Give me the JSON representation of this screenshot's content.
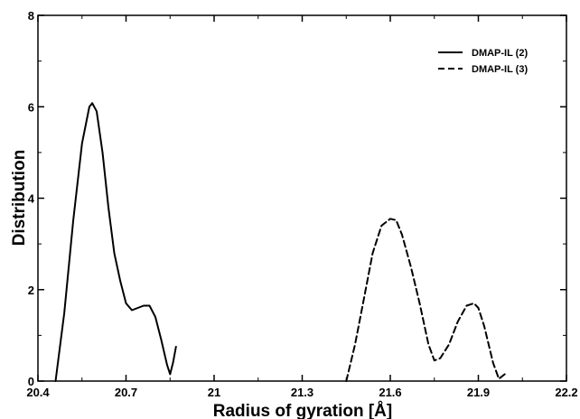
{
  "chart_data": {
    "type": "line",
    "title": "",
    "xlabel": "Radius of gyration [Å]",
    "ylabel": "Distribution",
    "xlim": [
      20.4,
      22.2
    ],
    "ylim": [
      0,
      8
    ],
    "x_ticks": [
      "20.4",
      "20.7",
      "21",
      "21.3",
      "21.6",
      "21.9",
      "22.2"
    ],
    "y_ticks": [
      "0",
      "2",
      "4",
      "6",
      "8"
    ],
    "grid": false,
    "legend_position": "top-right",
    "series": [
      {
        "name": "DMAP-IL (2)",
        "line_style": "solid",
        "color": "#000000",
        "points": [
          [
            20.46,
            0.0
          ],
          [
            20.49,
            1.5
          ],
          [
            20.52,
            3.5
          ],
          [
            20.55,
            5.2
          ],
          [
            20.575,
            6.0
          ],
          [
            20.585,
            6.08
          ],
          [
            20.6,
            5.9
          ],
          [
            20.62,
            5.0
          ],
          [
            20.64,
            3.8
          ],
          [
            20.66,
            2.8
          ],
          [
            20.68,
            2.2
          ],
          [
            20.7,
            1.7
          ],
          [
            20.72,
            1.55
          ],
          [
            20.74,
            1.6
          ],
          [
            20.76,
            1.65
          ],
          [
            20.78,
            1.65
          ],
          [
            20.8,
            1.4
          ],
          [
            20.82,
            0.9
          ],
          [
            20.84,
            0.35
          ],
          [
            20.85,
            0.15
          ],
          [
            20.86,
            0.4
          ],
          [
            20.87,
            0.75
          ]
        ]
      },
      {
        "name": "DMAP-IL (3)",
        "line_style": "dashed",
        "color": "#000000",
        "points": [
          [
            21.45,
            0.0
          ],
          [
            21.48,
            0.8
          ],
          [
            21.51,
            1.8
          ],
          [
            21.54,
            2.8
          ],
          [
            21.57,
            3.4
          ],
          [
            21.6,
            3.55
          ],
          [
            21.62,
            3.52
          ],
          [
            21.64,
            3.2
          ],
          [
            21.67,
            2.5
          ],
          [
            21.7,
            1.7
          ],
          [
            21.73,
            0.8
          ],
          [
            21.75,
            0.45
          ],
          [
            21.77,
            0.5
          ],
          [
            21.8,
            0.8
          ],
          [
            21.83,
            1.3
          ],
          [
            21.86,
            1.65
          ],
          [
            21.885,
            1.7
          ],
          [
            21.9,
            1.6
          ],
          [
            21.92,
            1.2
          ],
          [
            21.95,
            0.4
          ],
          [
            21.97,
            0.05
          ],
          [
            21.99,
            0.15
          ]
        ]
      }
    ]
  }
}
